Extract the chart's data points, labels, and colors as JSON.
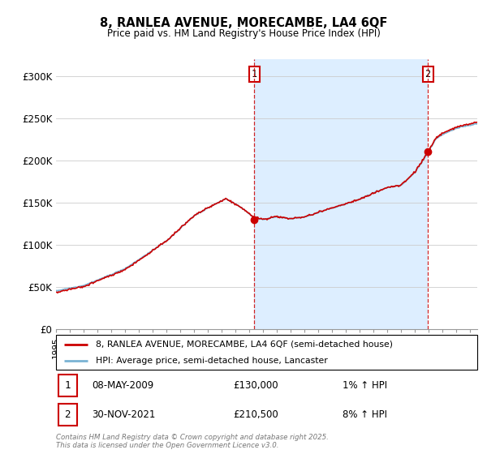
{
  "title_line1": "8, RANLEA AVENUE, MORECAMBE, LA4 6QF",
  "title_line2": "Price paid vs. HM Land Registry's House Price Index (HPI)",
  "legend_line1": "8, RANLEA AVENUE, MORECAMBE, LA4 6QF (semi-detached house)",
  "legend_line2": "HPI: Average price, semi-detached house, Lancaster",
  "annotation1_box": "1",
  "annotation1_date": "08-MAY-2009",
  "annotation1_price": "£130,000",
  "annotation1_hpi": "1% ↑ HPI",
  "annotation2_box": "2",
  "annotation2_date": "30-NOV-2021",
  "annotation2_price": "£210,500",
  "annotation2_hpi": "8% ↑ HPI",
  "footer": "Contains HM Land Registry data © Crown copyright and database right 2025.\nThis data is licensed under the Open Government Licence v3.0.",
  "ylim": [
    0,
    320000
  ],
  "yticks": [
    0,
    50000,
    100000,
    150000,
    200000,
    250000,
    300000
  ],
  "ytick_labels": [
    "£0",
    "£50K",
    "£100K",
    "£150K",
    "£200K",
    "£250K",
    "£300K"
  ],
  "hpi_color": "#7ab3d4",
  "price_color": "#cc0000",
  "shade_color": "#ddeeff",
  "vline1_x": 2009.35,
  "vline2_x": 2021.92,
  "purchase1_x": 2009.35,
  "purchase1_y": 130000,
  "purchase2_x": 2021.92,
  "purchase2_y": 210500,
  "xmin": 1995,
  "xmax": 2025.5,
  "background_color": "#ffffff",
  "grid_color": "#cccccc"
}
